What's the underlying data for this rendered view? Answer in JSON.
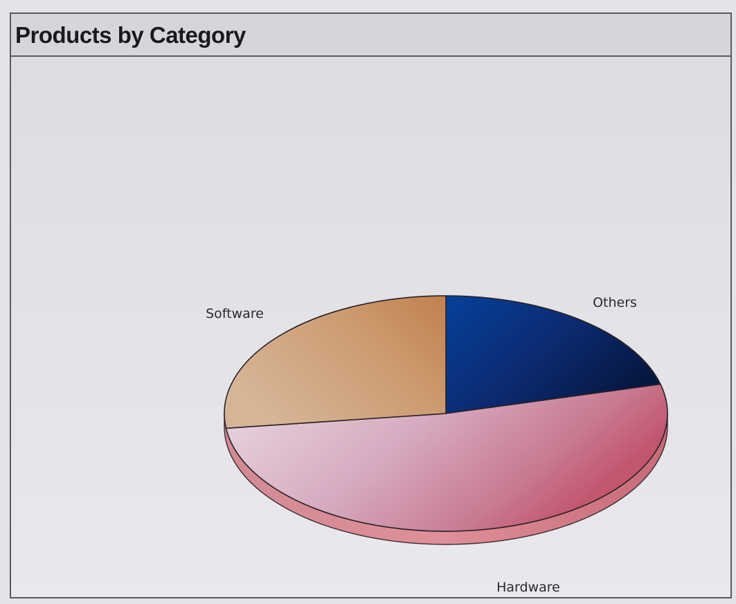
{
  "window": {
    "title": "Products by Category"
  },
  "chart_data": {
    "type": "pie",
    "title": "Products by Category",
    "style": "3d",
    "legend": "none",
    "slices": [
      {
        "label": "Others",
        "value": 21,
        "color": "#0b2a74"
      },
      {
        "label": "Hardware",
        "value": 52,
        "color": "#c9768e"
      },
      {
        "label": "Software",
        "value": 27,
        "color": "#c9966a"
      }
    ]
  }
}
